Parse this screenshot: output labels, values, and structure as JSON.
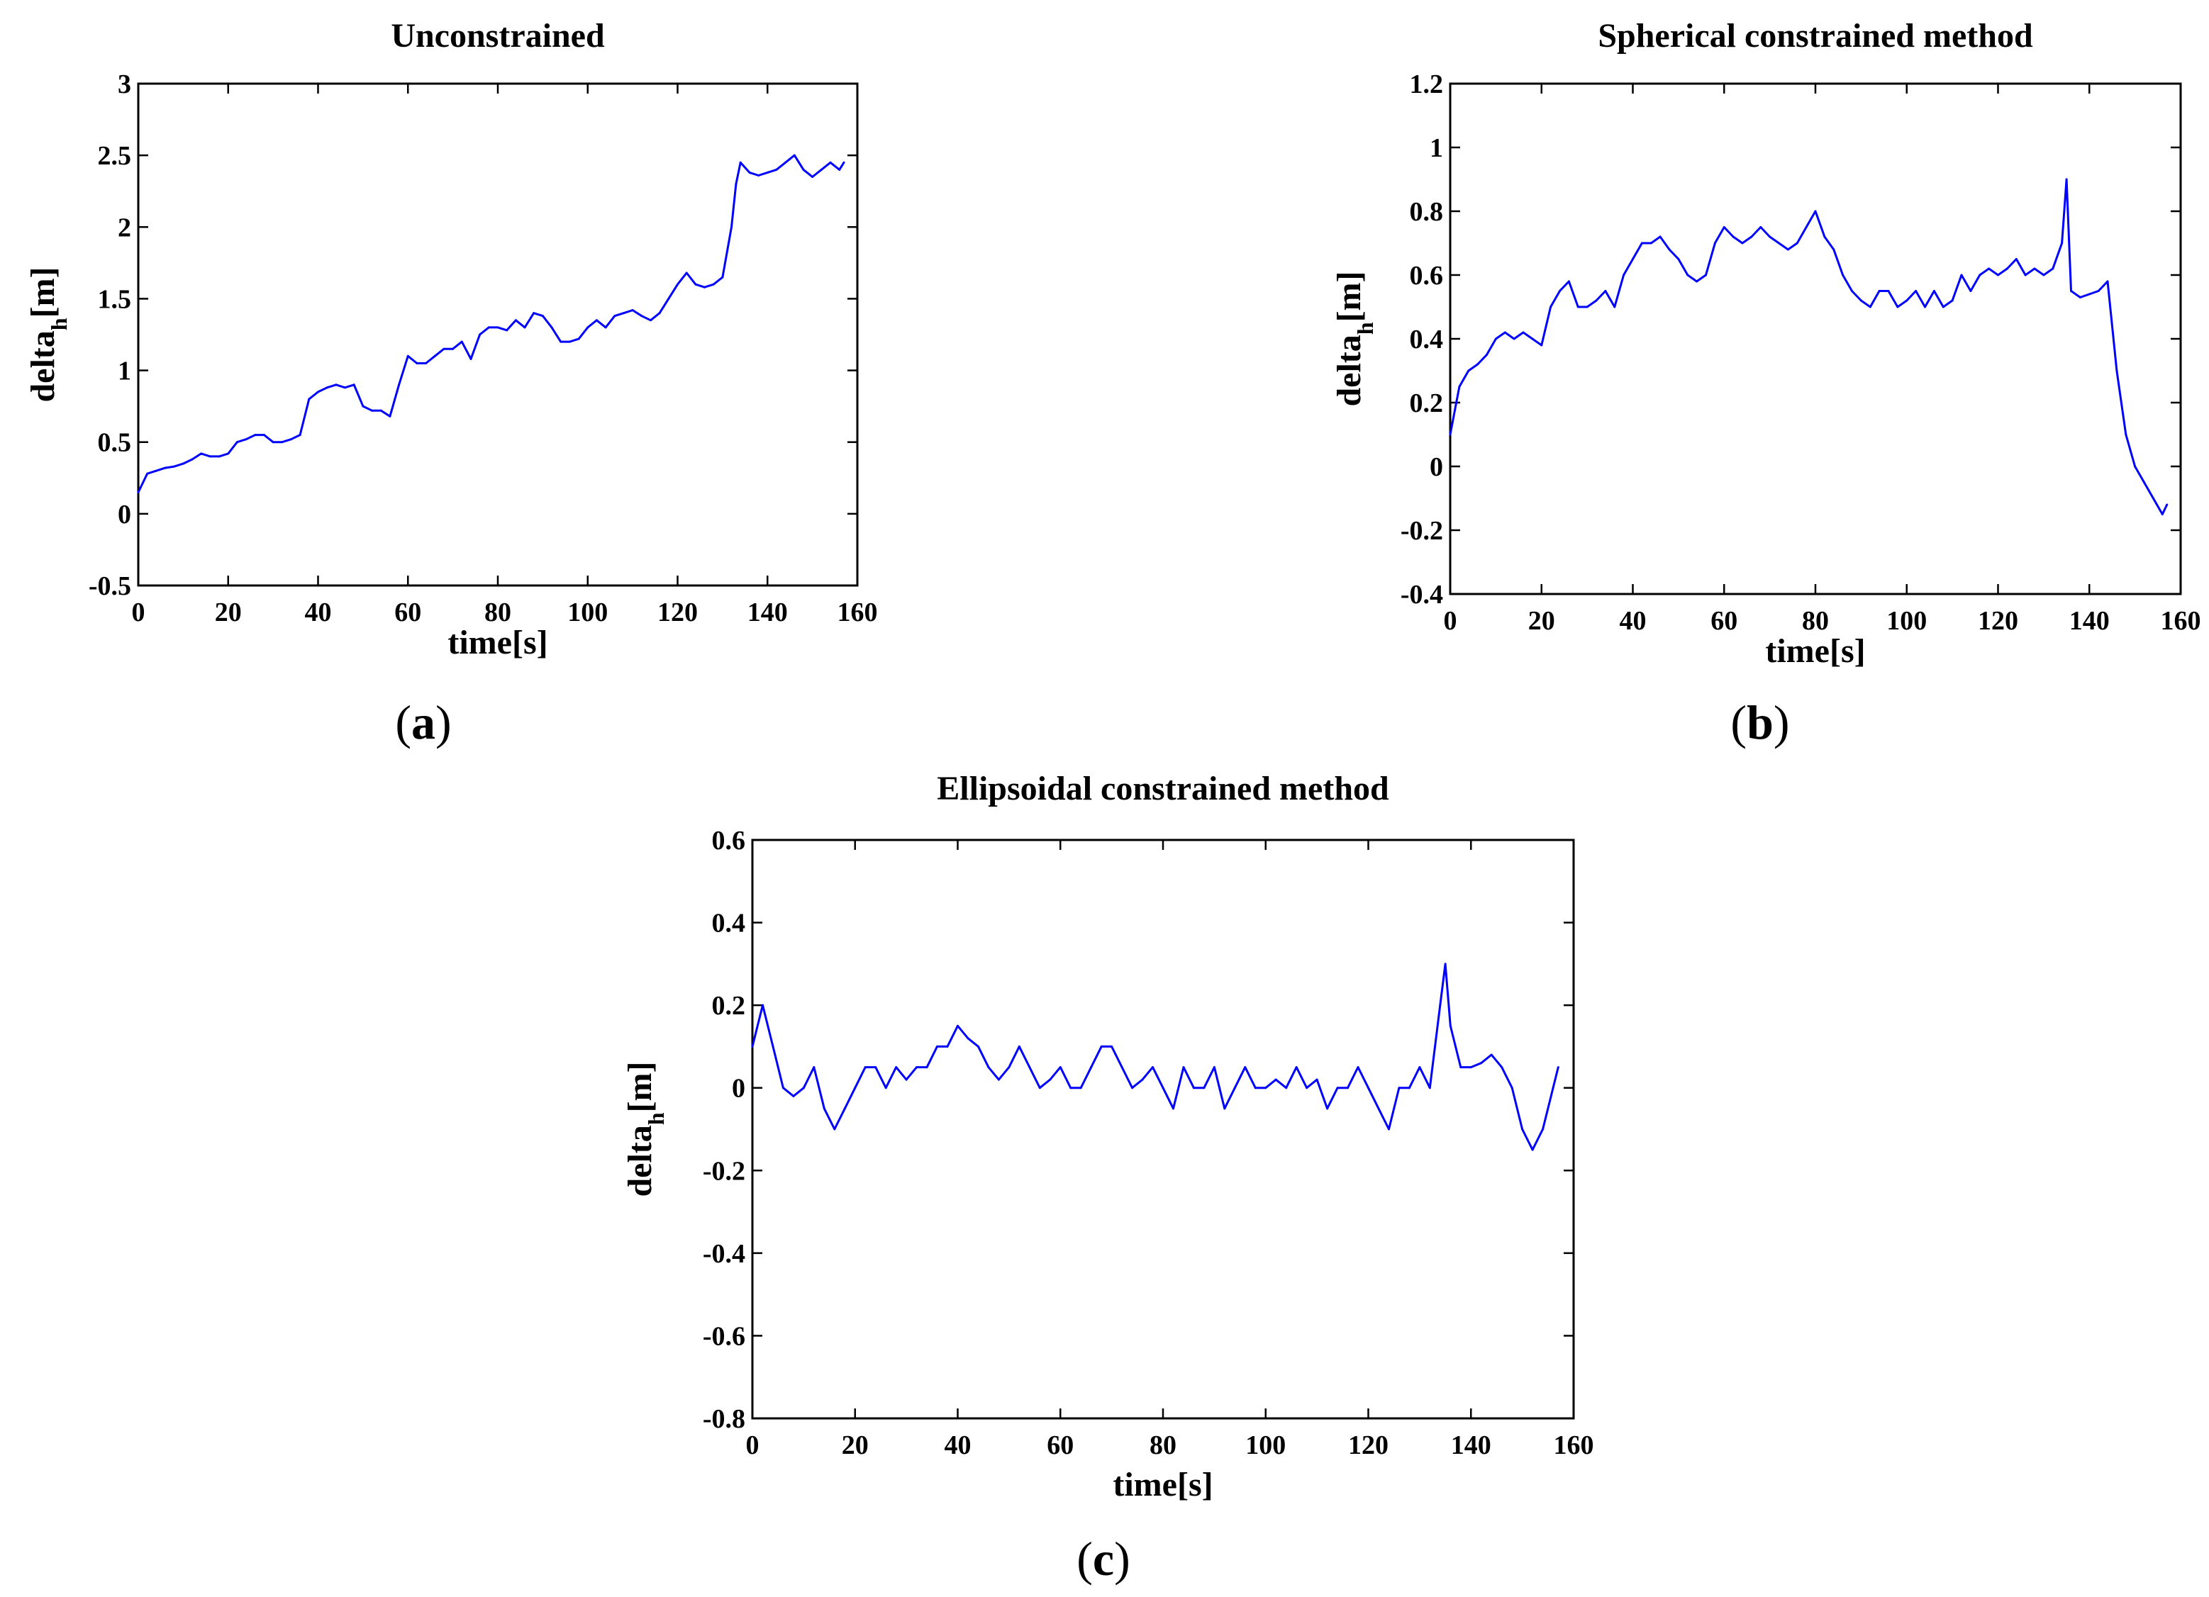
{
  "chart_data": [
    {
      "id": "a",
      "type": "line",
      "title": "Unconstrained",
      "xlabel": "time[s]",
      "ylabel_main": "delta",
      "ylabel_sub": "h",
      "ylabel_unit": "[m]",
      "caption_open": "(",
      "caption_letter": "a",
      "caption_close": ")",
      "xlim": [
        0,
        160
      ],
      "ylim": [
        -0.5,
        3
      ],
      "xticks": [
        0,
        20,
        40,
        60,
        80,
        100,
        120,
        140,
        160
      ],
      "xtick_labels": [
        "0",
        "20",
        "40",
        "60",
        "80",
        "100",
        "120",
        "140",
        "160"
      ],
      "yticks": [
        -0.5,
        0,
        0.5,
        1,
        1.5,
        2,
        2.5,
        3
      ],
      "ytick_labels": [
        "-0.5",
        "0",
        "0.5",
        "1",
        "1.5",
        "2",
        "2.5",
        "3"
      ],
      "line_color": "#0000ff",
      "series": [
        {
          "name": "delta_h",
          "x": [
            0,
            2,
            4,
            6,
            8,
            10,
            12,
            14,
            16,
            18,
            20,
            22,
            24,
            26,
            28,
            30,
            32,
            34,
            36,
            38,
            40,
            42,
            44,
            46,
            48,
            50,
            52,
            54,
            56,
            58,
            60,
            62,
            64,
            66,
            68,
            70,
            72,
            74,
            76,
            78,
            80,
            82,
            84,
            86,
            88,
            90,
            92,
            94,
            96,
            98,
            100,
            102,
            104,
            106,
            108,
            110,
            112,
            114,
            116,
            118,
            120,
            122,
            124,
            126,
            128,
            130,
            132,
            133,
            134,
            136,
            138,
            140,
            142,
            144,
            146,
            148,
            150,
            152,
            154,
            156,
            157
          ],
          "y": [
            0.15,
            0.28,
            0.3,
            0.32,
            0.33,
            0.35,
            0.38,
            0.42,
            0.4,
            0.4,
            0.42,
            0.5,
            0.52,
            0.55,
            0.55,
            0.5,
            0.5,
            0.52,
            0.55,
            0.8,
            0.85,
            0.88,
            0.9,
            0.88,
            0.9,
            0.75,
            0.72,
            0.72,
            0.68,
            0.9,
            1.1,
            1.05,
            1.05,
            1.1,
            1.15,
            1.15,
            1.2,
            1.08,
            1.25,
            1.3,
            1.3,
            1.28,
            1.35,
            1.3,
            1.4,
            1.38,
            1.3,
            1.2,
            1.2,
            1.22,
            1.3,
            1.35,
            1.3,
            1.38,
            1.4,
            1.42,
            1.38,
            1.35,
            1.4,
            1.5,
            1.6,
            1.68,
            1.6,
            1.58,
            1.6,
            1.65,
            2.0,
            2.3,
            2.45,
            2.38,
            2.36,
            2.38,
            2.4,
            2.45,
            2.5,
            2.4,
            2.35,
            2.4,
            2.45,
            2.4,
            2.45
          ]
        }
      ]
    },
    {
      "id": "b",
      "type": "line",
      "title": "Spherical constrained method",
      "xlabel": "time[s]",
      "ylabel_main": "delta",
      "ylabel_sub": "h",
      "ylabel_unit": "[m]",
      "caption_open": "(",
      "caption_letter": "b",
      "caption_close": ")",
      "xlim": [
        0,
        160
      ],
      "ylim": [
        -0.4,
        1.2
      ],
      "xticks": [
        0,
        20,
        40,
        60,
        80,
        100,
        120,
        140,
        160
      ],
      "xtick_labels": [
        "0",
        "20",
        "40",
        "60",
        "80",
        "100",
        "120",
        "140",
        "160"
      ],
      "yticks": [
        -0.4,
        -0.2,
        0,
        0.2,
        0.4,
        0.6,
        0.8,
        1,
        1.2
      ],
      "ytick_labels": [
        "-0.4",
        "-0.2",
        "0",
        "0.2",
        "0.4",
        "0.6",
        "0.8",
        "1",
        "1.2"
      ],
      "line_color": "#0000ff",
      "series": [
        {
          "name": "delta_h",
          "x": [
            0,
            2,
            4,
            6,
            8,
            10,
            12,
            14,
            16,
            18,
            20,
            22,
            24,
            26,
            28,
            30,
            32,
            34,
            36,
            38,
            40,
            42,
            44,
            46,
            48,
            50,
            52,
            54,
            56,
            58,
            60,
            62,
            64,
            66,
            68,
            70,
            72,
            74,
            76,
            78,
            80,
            82,
            84,
            86,
            88,
            90,
            92,
            94,
            96,
            98,
            100,
            102,
            104,
            106,
            108,
            110,
            112,
            114,
            116,
            118,
            120,
            122,
            124,
            126,
            128,
            130,
            132,
            134,
            135,
            136,
            138,
            140,
            142,
            144,
            146,
            148,
            150,
            152,
            154,
            156,
            157
          ],
          "y": [
            0.1,
            0.25,
            0.3,
            0.32,
            0.35,
            0.4,
            0.42,
            0.4,
            0.42,
            0.4,
            0.38,
            0.5,
            0.55,
            0.58,
            0.5,
            0.5,
            0.52,
            0.55,
            0.5,
            0.6,
            0.65,
            0.7,
            0.7,
            0.72,
            0.68,
            0.65,
            0.6,
            0.58,
            0.6,
            0.7,
            0.75,
            0.72,
            0.7,
            0.72,
            0.75,
            0.72,
            0.7,
            0.68,
            0.7,
            0.75,
            0.8,
            0.72,
            0.68,
            0.6,
            0.55,
            0.52,
            0.5,
            0.55,
            0.55,
            0.5,
            0.52,
            0.55,
            0.5,
            0.55,
            0.5,
            0.52,
            0.6,
            0.55,
            0.6,
            0.62,
            0.6,
            0.62,
            0.65,
            0.6,
            0.62,
            0.6,
            0.62,
            0.7,
            0.9,
            0.55,
            0.53,
            0.54,
            0.55,
            0.58,
            0.3,
            0.1,
            0.0,
            -0.05,
            -0.1,
            -0.15,
            -0.12
          ]
        }
      ]
    },
    {
      "id": "c",
      "type": "line",
      "title": "Ellipsoidal constrained method",
      "xlabel": "time[s]",
      "ylabel_main": "delta",
      "ylabel_sub": "h",
      "ylabel_unit": "[m]",
      "caption_open": "(",
      "caption_letter": "c",
      "caption_close": ")",
      "xlim": [
        0,
        160
      ],
      "ylim": [
        -0.8,
        0.6
      ],
      "xticks": [
        0,
        20,
        40,
        60,
        80,
        100,
        120,
        140,
        160
      ],
      "xtick_labels": [
        "0",
        "20",
        "40",
        "60",
        "80",
        "100",
        "120",
        "140",
        "160"
      ],
      "yticks": [
        -0.8,
        -0.6,
        -0.4,
        -0.2,
        0,
        0.2,
        0.4,
        0.6
      ],
      "ytick_labels": [
        "-0.8",
        "-0.6",
        "-0.4",
        "-0.2",
        "0",
        "0.2",
        "0.4",
        "0.6"
      ],
      "line_color": "#0000ff",
      "series": [
        {
          "name": "delta_h",
          "x": [
            0,
            2,
            4,
            6,
            8,
            10,
            12,
            14,
            16,
            18,
            20,
            22,
            24,
            26,
            28,
            30,
            32,
            34,
            36,
            38,
            40,
            42,
            44,
            46,
            48,
            50,
            52,
            54,
            56,
            58,
            60,
            62,
            64,
            66,
            68,
            70,
            72,
            74,
            76,
            78,
            80,
            82,
            84,
            86,
            88,
            90,
            92,
            94,
            96,
            98,
            100,
            102,
            104,
            106,
            108,
            110,
            112,
            114,
            116,
            118,
            120,
            122,
            124,
            126,
            128,
            130,
            132,
            134,
            135,
            136,
            138,
            140,
            142,
            144,
            146,
            148,
            150,
            152,
            154,
            156,
            157
          ],
          "y": [
            0.1,
            0.2,
            0.1,
            0.0,
            -0.02,
            0.0,
            0.05,
            -0.05,
            -0.1,
            -0.05,
            0.0,
            0.05,
            0.05,
            0.0,
            0.05,
            0.02,
            0.05,
            0.05,
            0.1,
            0.1,
            0.15,
            0.12,
            0.1,
            0.05,
            0.02,
            0.05,
            0.1,
            0.05,
            0.0,
            0.02,
            0.05,
            0.0,
            0.0,
            0.05,
            0.1,
            0.1,
            0.05,
            0.0,
            0.02,
            0.05,
            0.0,
            -0.05,
            0.05,
            0.0,
            0.0,
            0.05,
            -0.05,
            0.0,
            0.05,
            0.0,
            0.0,
            0.02,
            0.0,
            0.05,
            0.0,
            0.02,
            -0.05,
            0.0,
            0.0,
            0.05,
            0.0,
            -0.05,
            -0.1,
            0.0,
            0.0,
            0.05,
            0.0,
            0.2,
            0.3,
            0.15,
            0.05,
            0.05,
            0.06,
            0.08,
            0.05,
            0.0,
            -0.1,
            -0.15,
            -0.1,
            0.0,
            0.05
          ]
        }
      ]
    }
  ]
}
